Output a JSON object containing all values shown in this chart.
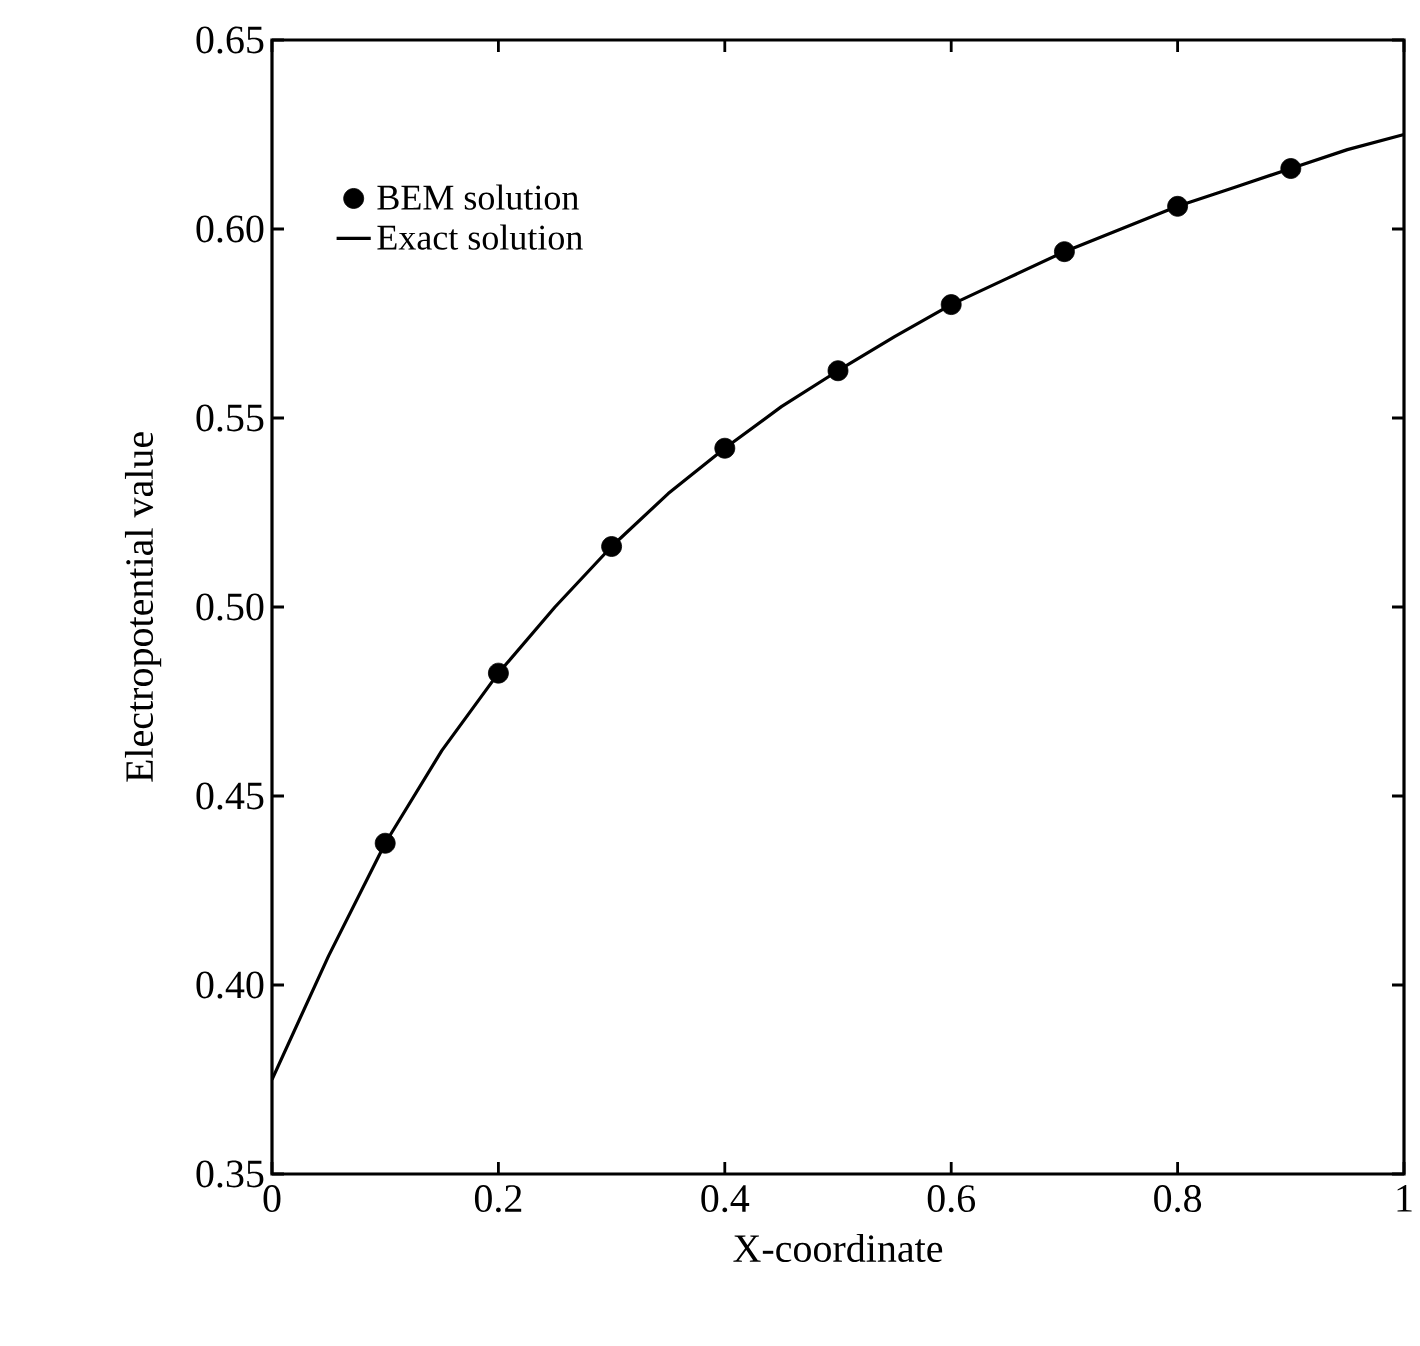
{
  "chart_data": {
    "type": "line",
    "xlabel": "X-coordinate",
    "ylabel": "Electropotential value",
    "xlim": [
      0,
      1
    ],
    "ylim": [
      0.35,
      0.65
    ],
    "xticks": [
      0,
      0.2,
      0.4,
      0.6,
      0.8,
      1
    ],
    "yticks": [
      0.35,
      {
        "value": 0.4,
        "label": "0.40"
      },
      0.45,
      {
        "value": 0.5,
        "label": "0.50"
      },
      0.55,
      {
        "value": 0.6,
        "label": "0.60"
      },
      0.65
    ],
    "legend": "top left",
    "grid": false,
    "series": [
      {
        "name": "BEM solution",
        "type": "scatter",
        "marker": "circle",
        "color": "#000000",
        "x": [
          0.1,
          0.2,
          0.3,
          0.4,
          0.5,
          0.6,
          0.7,
          0.8,
          0.9
        ],
        "values": [
          0.4375,
          0.4825,
          0.516,
          0.542,
          0.5625,
          0.58,
          0.594,
          0.606,
          0.616
        ]
      },
      {
        "name": "Exact solution",
        "marker": "none",
        "color": "#000000",
        "x": [
          0,
          0.05,
          0.1,
          0.15,
          0.2,
          0.25,
          0.3,
          0.35,
          0.4,
          0.45,
          0.5,
          0.55,
          0.6,
          0.65,
          0.7,
          0.75,
          0.8,
          0.85,
          0.9,
          0.95,
          1
        ],
        "values": [
          0.375,
          0.4077,
          0.4375,
          0.462,
          0.4825,
          0.5,
          0.516,
          0.53,
          0.542,
          0.553,
          0.5625,
          0.5715,
          0.58,
          0.587,
          0.594,
          0.6,
          0.606,
          0.611,
          0.616,
          0.621,
          0.625
        ]
      }
    ]
  }
}
